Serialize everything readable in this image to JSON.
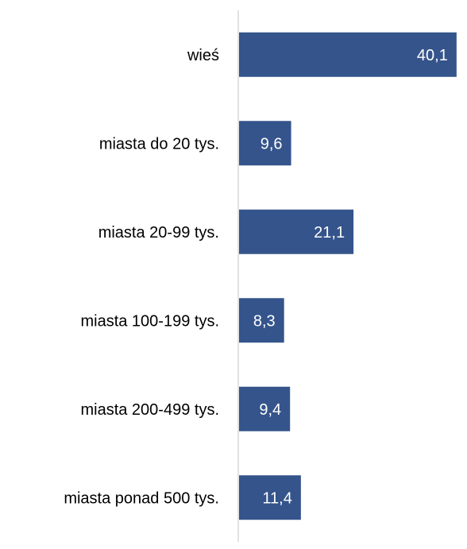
{
  "chart_data": {
    "type": "bar",
    "orientation": "horizontal",
    "categories": [
      "wieś",
      "miasta do 20 tys.",
      "miasta 20-99 tys.",
      "miasta 100-199 tys.",
      "miasta 200-499 tys.",
      "miasta ponad 500 tys."
    ],
    "values": [
      40.1,
      9.6,
      21.1,
      8.3,
      9.4,
      11.4
    ],
    "value_labels": [
      "40,1",
      "9,6",
      "21,1",
      "8,3",
      "9,4",
      "11,4"
    ],
    "xlim": [
      0,
      41
    ],
    "grid": false,
    "legend": "none",
    "colors": {
      "bar": "#34548b",
      "axis": "#d9d9d9"
    }
  }
}
